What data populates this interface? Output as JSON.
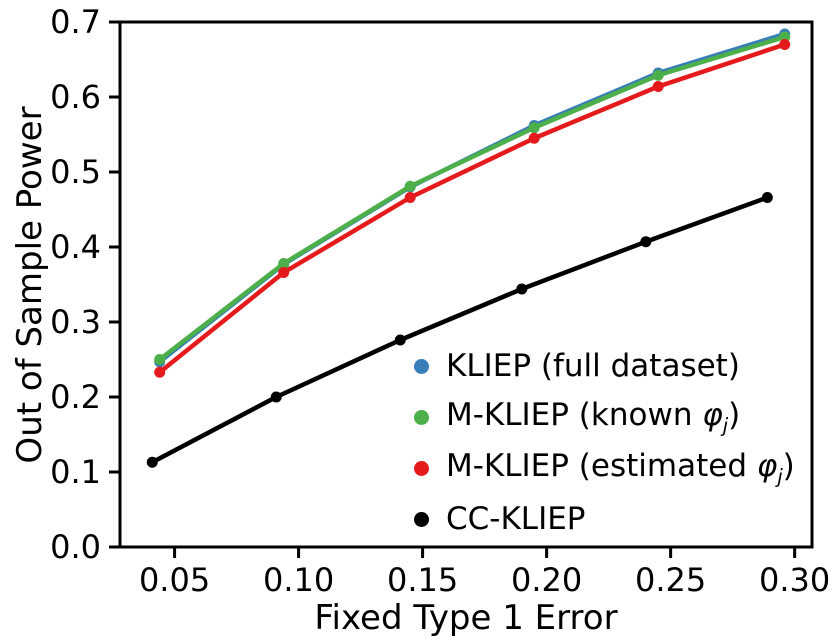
{
  "chart_data": {
    "type": "line",
    "title": "",
    "xlabel": "Fixed Type 1 Error",
    "ylabel": "Out of Sample Power",
    "xlim": [
      0.028,
      0.307
    ],
    "ylim": [
      0.0,
      0.7
    ],
    "xticks": [
      0.05,
      0.1,
      0.15,
      0.2,
      0.25,
      0.3
    ],
    "xtick_labels": [
      "0.05",
      "0.10",
      "0.15",
      "0.20",
      "0.25",
      "0.30"
    ],
    "yticks": [
      0.0,
      0.1,
      0.2,
      0.3,
      0.4,
      0.5,
      0.6,
      0.7
    ],
    "ytick_labels": [
      "0.0",
      "0.1",
      "0.2",
      "0.3",
      "0.4",
      "0.5",
      "0.6",
      "0.7"
    ],
    "grid": false,
    "legend_position": "lower right",
    "marker": "circle",
    "series": [
      {
        "name": "kliep-full-dataset",
        "label": "KLIEP (full dataset)",
        "color": "#377eb8",
        "x": [
          0.044,
          0.094,
          0.145,
          0.195,
          0.245,
          0.296
        ],
        "values": [
          0.247,
          0.377,
          0.48,
          0.562,
          0.632,
          0.684
        ]
      },
      {
        "name": "m-kliep-known-phi",
        "label": "M-KLIEP (known φ_j)",
        "color": "#4daf4a",
        "x": [
          0.044,
          0.094,
          0.145,
          0.195,
          0.245,
          0.296
        ],
        "values": [
          0.25,
          0.378,
          0.481,
          0.559,
          0.629,
          0.68
        ]
      },
      {
        "name": "m-kliep-estimated-phi",
        "label": "M-KLIEP (estimated φ_j)",
        "color": "#e41a1c",
        "x": [
          0.044,
          0.094,
          0.145,
          0.195,
          0.245,
          0.296
        ],
        "values": [
          0.233,
          0.366,
          0.466,
          0.545,
          0.614,
          0.67
        ]
      },
      {
        "name": "cc-kliep",
        "label": "CC-KLIEP",
        "color": "#000000",
        "x": [
          0.041,
          0.091,
          0.141,
          0.19,
          0.24,
          0.289
        ],
        "values": [
          0.113,
          0.2,
          0.276,
          0.344,
          0.407,
          0.466
        ]
      }
    ]
  }
}
